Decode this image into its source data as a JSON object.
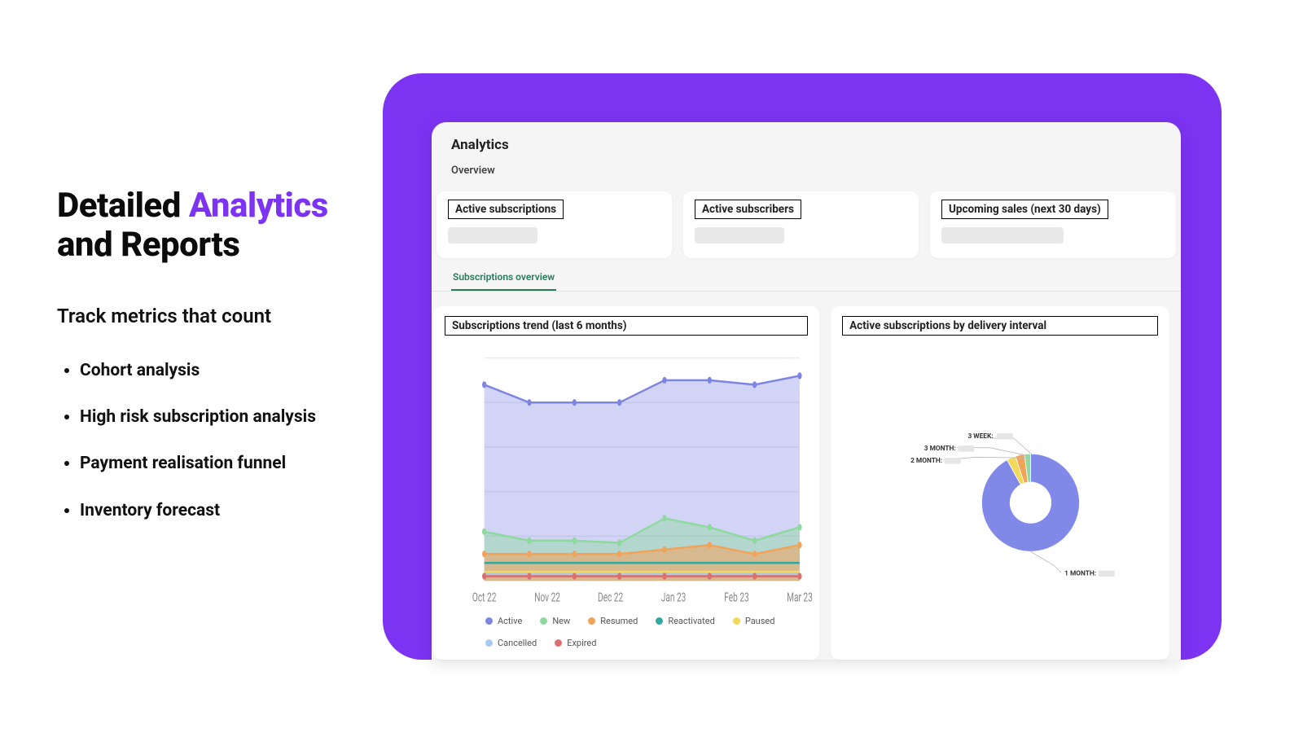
{
  "colors": {
    "accent": "#7d33f2",
    "text": "#111111",
    "card_bg": "#ffffff",
    "dash_bg": "#f5f5f6",
    "skeleton": "#e8e8e9"
  },
  "marketing": {
    "headline_pre": "Detailed ",
    "headline_accent": "Analytics",
    "headline_post": " and Reports",
    "subhead": "Track metrics that count",
    "features": [
      "Cohort analysis",
      "High risk subscription analysis",
      "Payment realisation funnel",
      "Inventory forecast"
    ]
  },
  "dashboard": {
    "title": "Analytics",
    "subtitle": "Overview",
    "stat_cards": [
      {
        "label": "Active subscriptions"
      },
      {
        "label": "Active subscribers"
      },
      {
        "label": "Upcoming sales (next 30 days)"
      }
    ],
    "tab": "Subscriptions overview",
    "trend_chart": {
      "title": "Subscriptions trend (last 6 months)",
      "type": "line-area",
      "x_labels": [
        "Oct 22",
        "Nov 22",
        "Dec 22",
        "Jan 23",
        "Feb 23",
        "Mar 23"
      ],
      "y_min": 0,
      "y_max": 100,
      "grid_rows": 5,
      "grid_color": "#ececee",
      "axis_label_color": "#888888",
      "axis_fontsize": 10,
      "series": [
        {
          "name": "Active",
          "color": "#7d85e3",
          "area_opacity": 0.35,
          "values": [
            88,
            80,
            80,
            80,
            90,
            90,
            88,
            92
          ],
          "marker": true
        },
        {
          "name": "New",
          "color": "#8fd99f",
          "area_opacity": 0.45,
          "values": [
            22,
            18,
            18,
            17,
            28,
            24,
            18,
            24
          ],
          "marker": true
        },
        {
          "name": "Resumed",
          "color": "#f2a35a",
          "area_opacity": 0.55,
          "values": [
            12,
            12,
            12,
            12,
            14,
            16,
            12,
            16
          ],
          "marker": true
        },
        {
          "name": "Reactivated",
          "color": "#2fa8a0",
          "area_opacity": 0,
          "values": [
            8,
            8,
            8,
            8,
            8,
            8,
            8,
            8
          ],
          "marker": false
        },
        {
          "name": "Paused",
          "color": "#f3d95a",
          "area_opacity": 0,
          "values": [
            4,
            4,
            4,
            4,
            4,
            4,
            4,
            4
          ],
          "marker": false
        },
        {
          "name": "Cancelled",
          "color": "#a8c8f0",
          "area_opacity": 0,
          "values": [
            3,
            3,
            3,
            3,
            3,
            3,
            3,
            3
          ],
          "marker": false
        },
        {
          "name": "Expired",
          "color": "#d96f6f",
          "area_opacity": 0,
          "values": [
            2,
            2,
            2,
            2,
            2,
            2,
            2,
            2
          ],
          "marker": true
        }
      ]
    },
    "donut_chart": {
      "title": "Active subscriptions by delivery interval",
      "type": "donut",
      "inner_radius_ratio": 0.42,
      "slices": [
        {
          "label": "1 MONTH:",
          "value": 92,
          "color": "#8189e8"
        },
        {
          "label": "3 WEEK:",
          "value": 3,
          "color": "#f3d95a"
        },
        {
          "label": "3 MONTH:",
          "value": 3,
          "color": "#f2a35a"
        },
        {
          "label": "2 MONTH:",
          "value": 2,
          "color": "#8fd99f"
        }
      ],
      "label_fontsize": 10,
      "label_color": "#333333"
    }
  }
}
